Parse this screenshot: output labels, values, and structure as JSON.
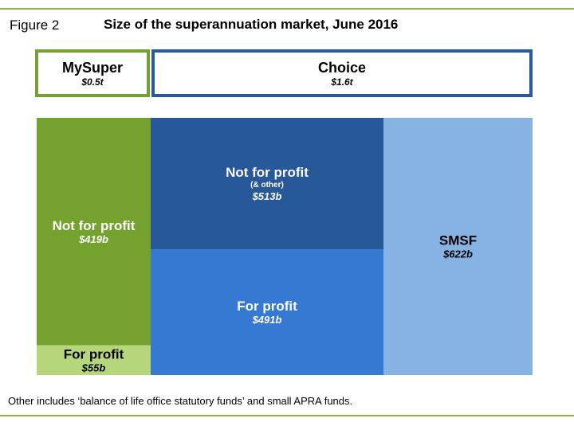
{
  "figure_label": "Figure 2",
  "title": "Size of the superannuation market, June 2016",
  "note": "Other includes ‘balance of life office statutory funds’ and small APRA funds.",
  "chart_data": {
    "type": "treemap",
    "title": "Size of the superannuation market, June 2016",
    "groups": [
      {
        "name": "MySuper",
        "value_label": "$0.5t"
      },
      {
        "name": "Choice",
        "value_label": "$1.6t"
      }
    ],
    "segments": [
      {
        "group": "MySuper",
        "name": "Not for profit",
        "sublabel": "",
        "value": 419,
        "value_label": "$419b",
        "color": "#75a12f"
      },
      {
        "group": "MySuper",
        "name": "For profit",
        "sublabel": "",
        "value": 55,
        "value_label": "$55b",
        "color": "#b6d67c"
      },
      {
        "group": "Choice",
        "name": "Not for profit",
        "sublabel": "(& other)",
        "value": 513,
        "value_label": "$513b",
        "color": "#27589a"
      },
      {
        "group": "Choice",
        "name": "For profit",
        "sublabel": "",
        "value": 491,
        "value_label": "$491b",
        "color": "#3579d2"
      },
      {
        "group": "Choice",
        "name": "SMSF",
        "sublabel": "",
        "value": 622,
        "value_label": "$622b",
        "color": "#86b2e4"
      }
    ]
  }
}
